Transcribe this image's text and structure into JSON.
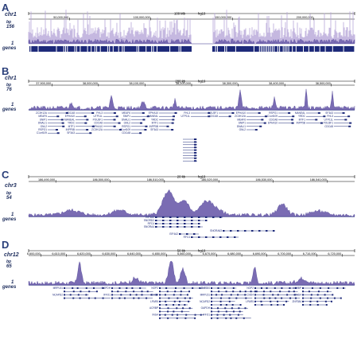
{
  "colors": {
    "signal": "#7a6cb3",
    "signal_dark": "#3b2f8a",
    "gene": "#1e2a7a",
    "label": "#2a3f7a"
  },
  "panels": [
    {
      "label": "A",
      "chrom": "chr1",
      "bp_label": "bp",
      "height_value": "156",
      "one_label": "1",
      "genes_label": "genes",
      "scale_text": "100 Mb",
      "scale_build": "hg19",
      "ticks": [
        "50,000,000",
        "100,000,000",
        "150,000,000",
        "200,000,000"
      ],
      "gene_names": []
    },
    {
      "label": "B",
      "chrom": "chr1",
      "bp_label": "bp",
      "height_value": "76",
      "one_label": "1",
      "genes_label": "genes",
      "scale_text": "200 kb",
      "scale_build": "hg19",
      "ticks": [
        "37,900,000",
        "38,000,000",
        "38,100,000",
        "38,200,000",
        "38,300,000",
        "38,400,000",
        "38,500,000"
      ],
      "gene_names": [
        "ZC3H12A",
        "MEAF6",
        "SNIP1",
        "DNALI1",
        "GNL2",
        "RSPO1",
        "C1orf109",
        "CDCA8",
        "EPHA10",
        "MANEAL",
        "YRDC",
        "MTF1",
        "INPP5B",
        "SF3A3",
        "FHL3",
        "UTP11L",
        "POU3F1",
        "CDCA8",
        "EPHA10"
      ]
    },
    {
      "label": "C",
      "chrom": "chr3",
      "bp_label": "bp",
      "height_value": "54",
      "one_label": "1",
      "genes_label": "genes",
      "scale_text": "20 kb",
      "scale_build": "hg19",
      "ticks": [
        "186,490,000",
        "186,500,000",
        "186,510,000",
        "186,520,000",
        "186,530,000",
        "186,540,000"
      ],
      "gene_names": [
        "EIF4A2",
        "SNORD2",
        "RFC4",
        "SNORA4",
        "SNORA63",
        "EIF4A2",
        "RFC4"
      ]
    },
    {
      "label": "D",
      "chrom": "chr12",
      "bp_label": "bp",
      "height_value": "65",
      "one_label": "1",
      "genes_label": "genes",
      "scale_text": "50 kb",
      "scale_build": "hg19",
      "ticks": [
        "6,600,000",
        "6,610,000",
        "6,620,000",
        "6,630,000",
        "6,640,000",
        "6,650,000",
        "6,660,000",
        "6,670,000",
        "6,680,000",
        "6,690,000",
        "6,700,000",
        "6,710,000",
        "6,720,000"
      ],
      "gene_names": [
        "MRPL51",
        "NCAPD2",
        "GAPDH",
        "IFFO1",
        "NOP2",
        "CHD4",
        "LPAR5",
        "ACRBP",
        "ING4",
        "ZNF384"
      ]
    }
  ]
}
